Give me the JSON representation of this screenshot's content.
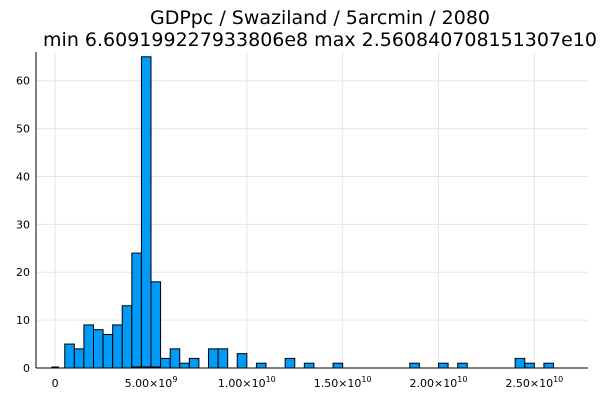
{
  "chart_data": {
    "type": "bar",
    "title_line1": "GDPpc / Swaziland / 5arcmin / 2080",
    "title_line2": "min 6.609199227933806e8  max 2.560840708151307e10",
    "xlabel": "",
    "ylabel": "",
    "xlim": [
      -1000000000.0,
      27800000000.0
    ],
    "ylim": [
      0,
      66
    ],
    "grid": true,
    "legend": "none",
    "bar_color": "#009af9",
    "bin_width": 500000000.0,
    "bins": [
      {
        "x0": 500000000.0,
        "count": 5
      },
      {
        "x0": 1000000000.0,
        "count": 4
      },
      {
        "x0": 1500000000.0,
        "count": 9
      },
      {
        "x0": 2000000000.0,
        "count": 8
      },
      {
        "x0": 2500000000.0,
        "count": 7
      },
      {
        "x0": 3000000000.0,
        "count": 9
      },
      {
        "x0": 3500000000.0,
        "count": 13
      },
      {
        "x0": 4000000000.0,
        "count": 24
      },
      {
        "x0": 4500000000.0,
        "count": 65
      },
      {
        "x0": 5000000000.0,
        "count": 18
      },
      {
        "x0": 5500000000.0,
        "count": 2
      },
      {
        "x0": 6000000000.0,
        "count": 4
      },
      {
        "x0": 6500000000.0,
        "count": 1
      },
      {
        "x0": 7000000000.0,
        "count": 2
      },
      {
        "x0": 8000000000.0,
        "count": 4
      },
      {
        "x0": 8500000000.0,
        "count": 4
      },
      {
        "x0": 9500000000.0,
        "count": 3
      },
      {
        "x0": 10500000000.0,
        "count": 1
      },
      {
        "x0": 12000000000.0,
        "count": 2
      },
      {
        "x0": 13000000000.0,
        "count": 1
      },
      {
        "x0": 14500000000.0,
        "count": 1
      },
      {
        "x0": 18500000000.0,
        "count": 1
      },
      {
        "x0": 20000000000.0,
        "count": 1
      },
      {
        "x0": 21000000000.0,
        "count": 1
      },
      {
        "x0": 24000000000.0,
        "count": 2
      },
      {
        "x0": 24500000000.0,
        "count": 1
      },
      {
        "x0": 25500000000.0,
        "count": 1
      }
    ],
    "y_ticks": [
      {
        "value": 0,
        "label": "0"
      },
      {
        "value": 10,
        "label": "10"
      },
      {
        "value": 20,
        "label": "20"
      },
      {
        "value": 30,
        "label": "30"
      },
      {
        "value": 40,
        "label": "40"
      },
      {
        "value": 50,
        "label": "50"
      },
      {
        "value": 60,
        "label": "60"
      }
    ],
    "x_ticks": [
      {
        "value": 0,
        "mantissa": "0",
        "exponent": ""
      },
      {
        "value": 5000000000.0,
        "mantissa": "5.00×10",
        "exponent": "9"
      },
      {
        "value": 10000000000.0,
        "mantissa": "1.00×10",
        "exponent": "10"
      },
      {
        "value": 15000000000.0,
        "mantissa": "1.50×10",
        "exponent": "10"
      },
      {
        "value": 20000000000.0,
        "mantissa": "2.00×10",
        "exponent": "10"
      },
      {
        "value": 25000000000.0,
        "mantissa": "2.50×10",
        "exponent": "10"
      }
    ]
  }
}
